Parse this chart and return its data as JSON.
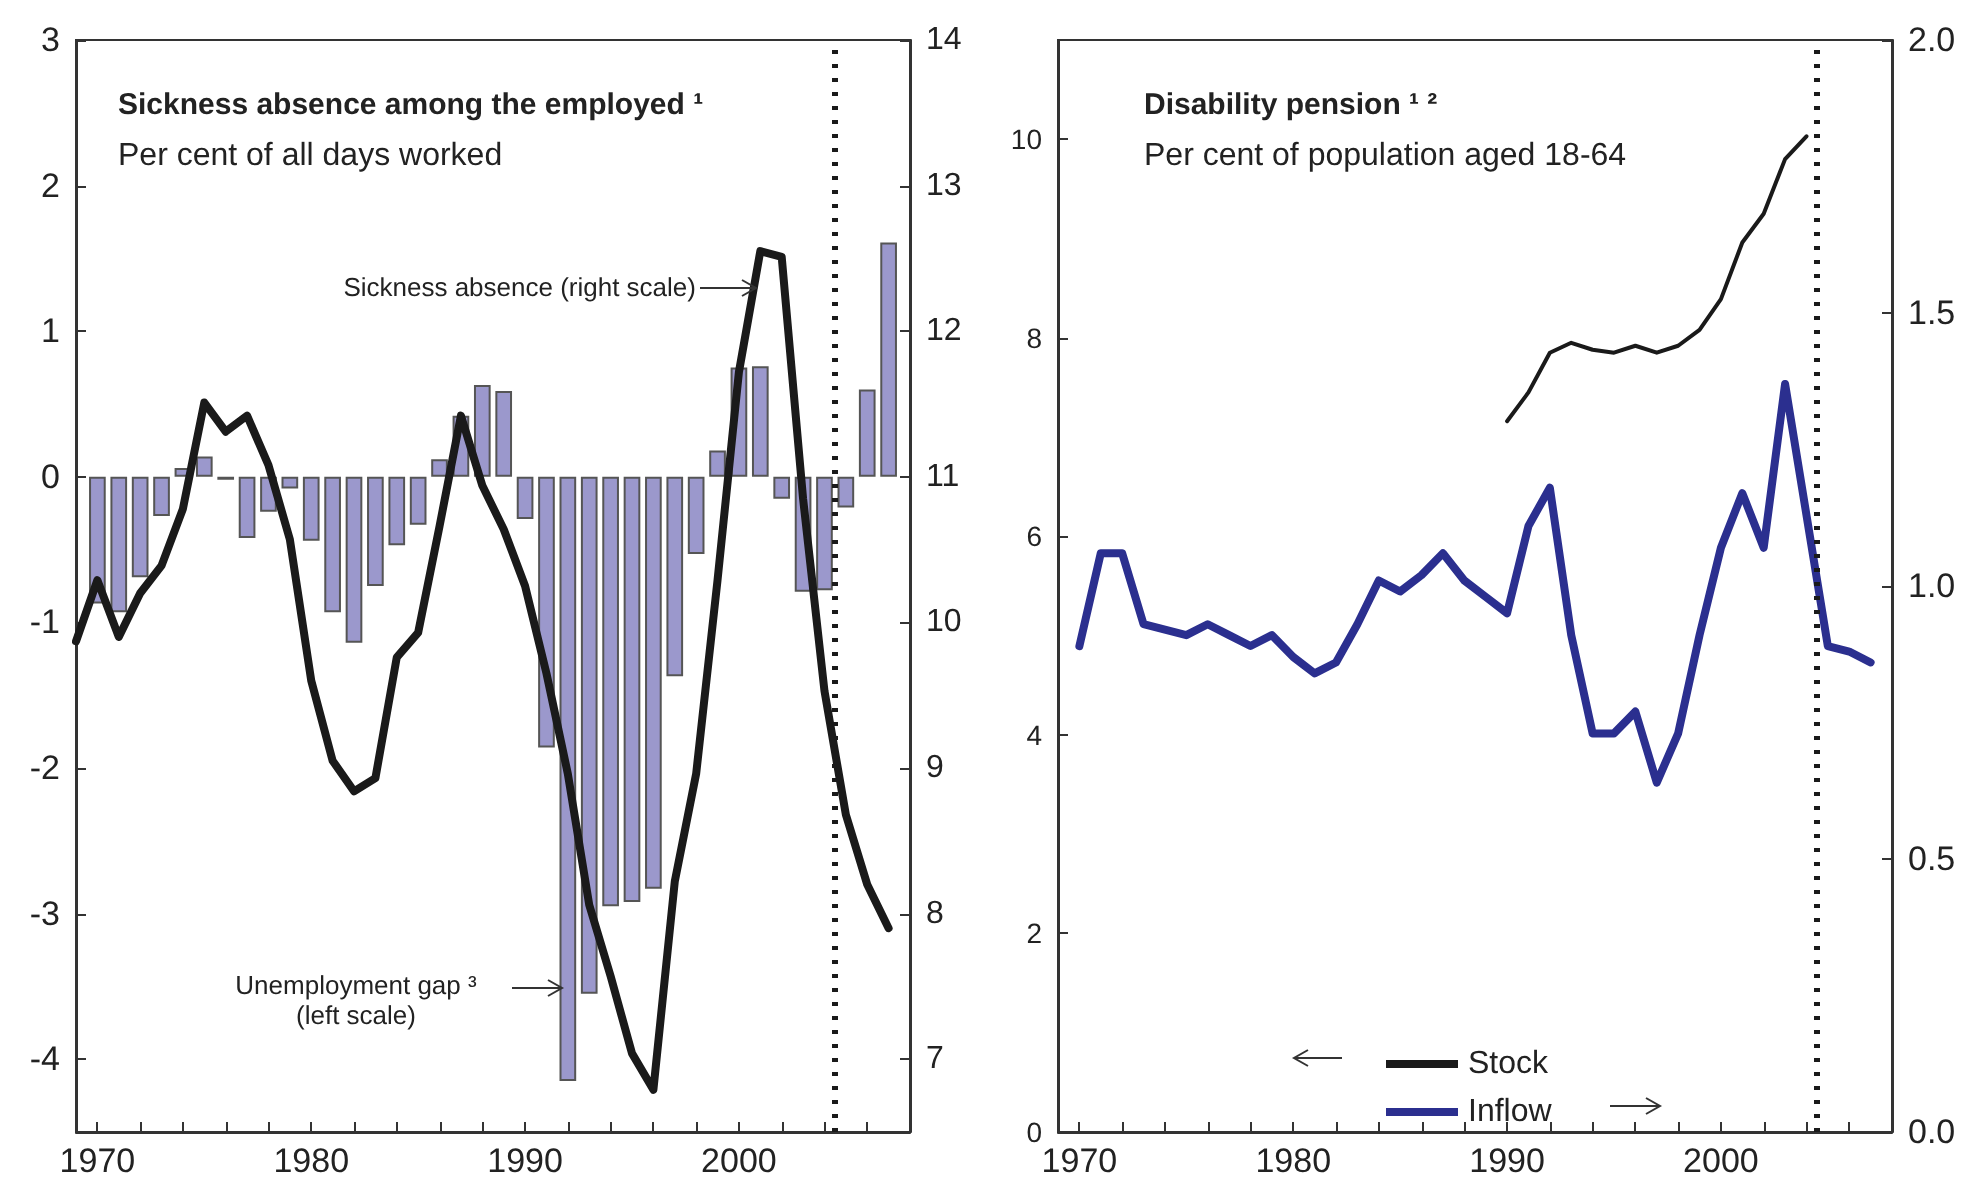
{
  "chart_data": [
    {
      "type": "bar",
      "title": "Sickness absence among the employed ¹",
      "subtitle": "Per cent of all days worked",
      "series": [
        {
          "type": "bar",
          "color": "#9b98cc",
          "x": [
            1970,
            1971,
            1972,
            1973,
            1974,
            1975,
            1976,
            1977,
            1978,
            1979,
            1980,
            1981,
            1982,
            1983,
            1984,
            1985,
            1986,
            1987,
            1988,
            1989,
            1990,
            1991,
            1992,
            1993,
            1994,
            1995,
            1996,
            1997,
            1998,
            1999,
            2000,
            2001,
            2002,
            2003,
            2004,
            2005,
            2006,
            2007
          ],
          "values": [
            -0.87,
            -0.93,
            -0.69,
            -0.27,
            0.06,
            0.14,
            -0.02,
            -0.42,
            -0.24,
            -0.08,
            -0.44,
            -0.93,
            -1.14,
            -0.75,
            -0.47,
            -0.33,
            0.12,
            0.42,
            0.63,
            0.59,
            -0.29,
            -1.86,
            -4.15,
            -3.55,
            -2.95,
            -2.92,
            -2.83,
            -1.37,
            -0.53,
            0.18,
            0.75,
            0.76,
            -0.15,
            -0.79,
            -0.78,
            -0.21,
            0.6,
            1.61
          ]
        },
        {
          "type": "line",
          "axis": "y2",
          "color": "#1a1a1a",
          "x": [
            1969,
            1970,
            1971,
            1972,
            1973,
            1974,
            1975,
            1976,
            1977,
            1978,
            1979,
            1980,
            1981,
            1982,
            1983,
            1984,
            1985,
            1986,
            1987,
            1988,
            1989,
            1990,
            1991,
            1992,
            1993,
            1994,
            1995,
            1996,
            1997,
            1998,
            1999,
            2000,
            2001,
            2002,
            2003,
            2004,
            2005,
            2006,
            2007
          ],
          "values": [
            9.87,
            10.29,
            9.9,
            10.2,
            10.39,
            10.78,
            11.51,
            11.31,
            11.42,
            11.08,
            10.57,
            9.6,
            9.05,
            8.84,
            8.93,
            9.76,
            9.93,
            10.66,
            11.42,
            10.94,
            10.64,
            10.25,
            9.65,
            8.96,
            8.06,
            7.57,
            7.04,
            6.79,
            8.22,
            8.96,
            10.29,
            11.72,
            12.55,
            12.51,
            10.85,
            9.53,
            8.68,
            8.2,
            7.9
          ]
        }
      ],
      "xlim": [
        1969,
        2008
      ],
      "xticks": [
        1970,
        {
          "value": 1972,
          "label": null
        },
        {
          "value": 1974,
          "label": null
        },
        {
          "value": 1976,
          "label": null
        },
        {
          "value": 1978,
          "label": null
        },
        1980,
        {
          "value": 1982,
          "label": null
        },
        {
          "value": 1984,
          "label": null
        },
        {
          "value": 1986,
          "label": null
        },
        {
          "value": 1988,
          "label": null
        },
        1990,
        {
          "value": 1992,
          "label": null
        },
        {
          "value": 1994,
          "label": null
        },
        {
          "value": 1996,
          "label": null
        },
        {
          "value": 1998,
          "label": null
        },
        2000,
        {
          "value": 2002,
          "label": null
        },
        {
          "value": 2004,
          "label": null
        },
        {
          "value": 2006,
          "label": null
        }
      ],
      "ylim": [
        -4.5,
        3
      ],
      "yticks": [
        -4,
        -3,
        -2,
        -1,
        0,
        1,
        2,
        3
      ],
      "y2lim": [
        6.5,
        14
      ],
      "y2ticks": [
        7,
        8,
        9,
        10,
        11,
        12,
        13,
        14
      ],
      "ref_lines": [
        {
          "axis": "x",
          "value": 2004.5,
          "color": "#1a1a1a",
          "line_style": "dotted"
        }
      ],
      "annotations": [
        "Sickness absence (right scale)",
        "Unemployment gap ³\n(left scale)"
      ],
      "marker": "none",
      "line_style": "solid"
    },
    {
      "type": "line",
      "title": "Disability pension ¹ ²",
      "subtitle": "Per cent of population aged 18-64",
      "series": [
        {
          "name": "Stock",
          "color": "#1a1a1a",
          "x": [
            1990,
            1991,
            1992,
            1993,
            1994,
            1995,
            1996,
            1997,
            1998,
            1999,
            2000,
            2001,
            2002,
            2003,
            2004
          ],
          "values": [
            7.16,
            7.45,
            7.85,
            7.95,
            7.88,
            7.85,
            7.92,
            7.85,
            7.92,
            8.08,
            8.39,
            8.96,
            9.25,
            9.8,
            10.03
          ]
        },
        {
          "name": "Inflow",
          "axis": "y2",
          "color": "#2b2f8f",
          "x": [
            1970,
            1971,
            1972,
            1973,
            1974,
            1975,
            1976,
            1977,
            1978,
            1979,
            1980,
            1981,
            1982,
            1983,
            1984,
            1985,
            1986,
            1987,
            1988,
            1989,
            1990,
            1991,
            1992,
            1993,
            1994,
            1995,
            1996,
            1997,
            1998,
            1999,
            2000,
            2001,
            2002,
            2003,
            2004,
            2005,
            2006,
            2007
          ],
          "values": [
            0.89,
            1.06,
            1.06,
            0.93,
            0.92,
            0.91,
            0.93,
            0.91,
            0.89,
            0.91,
            0.87,
            0.84,
            0.86,
            0.93,
            1.01,
            0.99,
            1.02,
            1.06,
            1.01,
            0.98,
            0.95,
            1.11,
            1.18,
            0.91,
            0.73,
            0.73,
            0.77,
            0.64,
            0.73,
            0.91,
            1.07,
            1.17,
            1.07,
            1.37,
            1.13,
            0.89,
            0.88,
            0.86
          ]
        }
      ],
      "xlim": [
        1969,
        2008
      ],
      "xticks": [
        1970,
        {
          "value": 1972,
          "label": null
        },
        {
          "value": 1974,
          "label": null
        },
        {
          "value": 1976,
          "label": null
        },
        {
          "value": 1978,
          "label": null
        },
        1980,
        {
          "value": 1982,
          "label": null
        },
        {
          "value": 1984,
          "label": null
        },
        {
          "value": 1986,
          "label": null
        },
        {
          "value": 1988,
          "label": null
        },
        1990,
        {
          "value": 1992,
          "label": null
        },
        {
          "value": 1994,
          "label": null
        },
        {
          "value": 1996,
          "label": null
        },
        {
          "value": 1998,
          "label": null
        },
        2000,
        {
          "value": 2002,
          "label": null
        },
        {
          "value": 2004,
          "label": null
        },
        {
          "value": 2006,
          "label": null
        }
      ],
      "ylim": [
        0,
        11
      ],
      "yticks": [
        0,
        2,
        4,
        6,
        8,
        10
      ],
      "y2lim": [
        0,
        2
      ],
      "y2ticks": [
        {
          "value": 0,
          "label": "0.0"
        },
        {
          "value": 0.5,
          "label": "0.5"
        },
        {
          "value": 1,
          "label": "1.0"
        },
        {
          "value": 1.5,
          "label": "1.5"
        },
        {
          "value": 2,
          "label": "2.0"
        }
      ],
      "ref_lines": [
        {
          "axis": "x",
          "value": 2004.5,
          "color": "#1a1a1a",
          "line_style": "dotted"
        }
      ],
      "legend": "bottom",
      "marker": "none",
      "line_style": "solid"
    }
  ]
}
